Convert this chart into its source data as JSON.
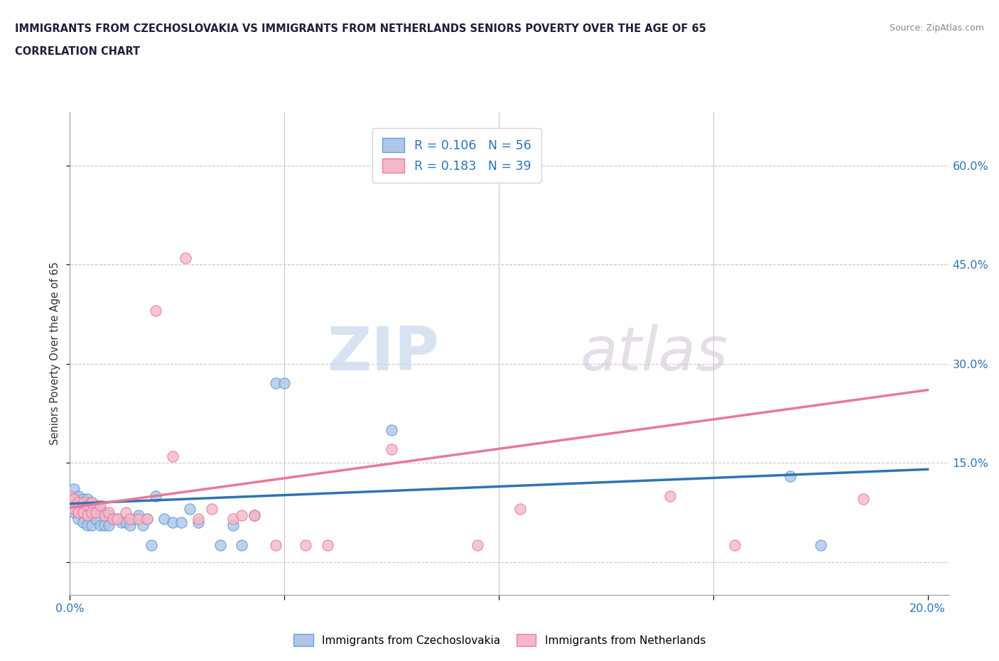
{
  "title_line1": "IMMIGRANTS FROM CZECHOSLOVAKIA VS IMMIGRANTS FROM NETHERLANDS SENIORS POVERTY OVER THE AGE OF 65",
  "title_line2": "CORRELATION CHART",
  "source": "Source: ZipAtlas.com",
  "ylabel": "Seniors Poverty Over the Age of 65",
  "xlim": [
    0.0,
    0.205
  ],
  "ylim": [
    -0.05,
    0.68
  ],
  "xticks": [
    0.0,
    0.05,
    0.1,
    0.15,
    0.2
  ],
  "yticks": [
    0.0,
    0.15,
    0.3,
    0.45,
    0.6
  ],
  "ytick_labels": [
    "",
    "15.0%",
    "30.0%",
    "45.0%",
    "60.0%"
  ],
  "series1_name": "Immigrants from Czechoslovakia",
  "series1_color": "#aec6e8",
  "series1_edge_color": "#5b9bd5",
  "series1_R": "0.106",
  "series1_N": "56",
  "series2_name": "Immigrants from Netherlands",
  "series2_color": "#f4b8c8",
  "series2_edge_color": "#e8789a",
  "series2_R": "0.183",
  "series2_N": "39",
  "legend_color": "#2e74b5",
  "watermark_zip": "ZIP",
  "watermark_atlas": "atlas",
  "background_color": "#ffffff",
  "grid_color": "#c8c8c8",
  "title_color": "#1f1f3a",
  "axis_label_color": "#2e74b5",
  "series1_x": [
    0.0,
    0.0,
    0.001,
    0.001,
    0.001,
    0.001,
    0.001,
    0.002,
    0.002,
    0.002,
    0.002,
    0.002,
    0.003,
    0.003,
    0.003,
    0.003,
    0.004,
    0.004,
    0.004,
    0.004,
    0.005,
    0.005,
    0.005,
    0.006,
    0.006,
    0.007,
    0.007,
    0.008,
    0.008,
    0.009,
    0.009,
    0.01,
    0.011,
    0.012,
    0.013,
    0.014,
    0.015,
    0.016,
    0.017,
    0.018,
    0.019,
    0.02,
    0.022,
    0.024,
    0.026,
    0.028,
    0.03,
    0.035,
    0.038,
    0.04,
    0.043,
    0.048,
    0.05,
    0.075,
    0.168,
    0.175
  ],
  "series1_y": [
    0.1,
    0.08,
    0.11,
    0.09,
    0.095,
    0.085,
    0.075,
    0.1,
    0.09,
    0.085,
    0.075,
    0.065,
    0.095,
    0.085,
    0.075,
    0.06,
    0.095,
    0.085,
    0.07,
    0.055,
    0.09,
    0.07,
    0.055,
    0.085,
    0.065,
    0.08,
    0.055,
    0.075,
    0.055,
    0.07,
    0.055,
    0.065,
    0.065,
    0.06,
    0.06,
    0.055,
    0.065,
    0.07,
    0.055,
    0.065,
    0.025,
    0.1,
    0.065,
    0.06,
    0.06,
    0.08,
    0.06,
    0.025,
    0.055,
    0.025,
    0.07,
    0.27,
    0.27,
    0.2,
    0.13,
    0.025
  ],
  "series2_x": [
    0.0,
    0.0,
    0.001,
    0.001,
    0.002,
    0.002,
    0.003,
    0.003,
    0.004,
    0.004,
    0.005,
    0.005,
    0.006,
    0.007,
    0.008,
    0.009,
    0.01,
    0.011,
    0.013,
    0.014,
    0.016,
    0.018,
    0.02,
    0.024,
    0.027,
    0.03,
    0.033,
    0.038,
    0.04,
    0.043,
    0.048,
    0.055,
    0.06,
    0.075,
    0.095,
    0.105,
    0.14,
    0.155,
    0.185
  ],
  "series2_y": [
    0.1,
    0.085,
    0.095,
    0.08,
    0.09,
    0.075,
    0.09,
    0.075,
    0.085,
    0.07,
    0.09,
    0.075,
    0.075,
    0.085,
    0.07,
    0.075,
    0.065,
    0.065,
    0.075,
    0.065,
    0.065,
    0.065,
    0.38,
    0.16,
    0.46,
    0.065,
    0.08,
    0.065,
    0.07,
    0.07,
    0.025,
    0.025,
    0.025,
    0.17,
    0.025,
    0.08,
    0.1,
    0.025,
    0.095
  ],
  "trendline1_x": [
    0.0,
    0.2
  ],
  "trendline1_y": [
    0.088,
    0.14
  ],
  "trendline2_x": [
    0.0,
    0.2
  ],
  "trendline2_y": [
    0.082,
    0.26
  ],
  "trendline1_color": "#2e74b5",
  "trendline2_color": "#e8789a"
}
